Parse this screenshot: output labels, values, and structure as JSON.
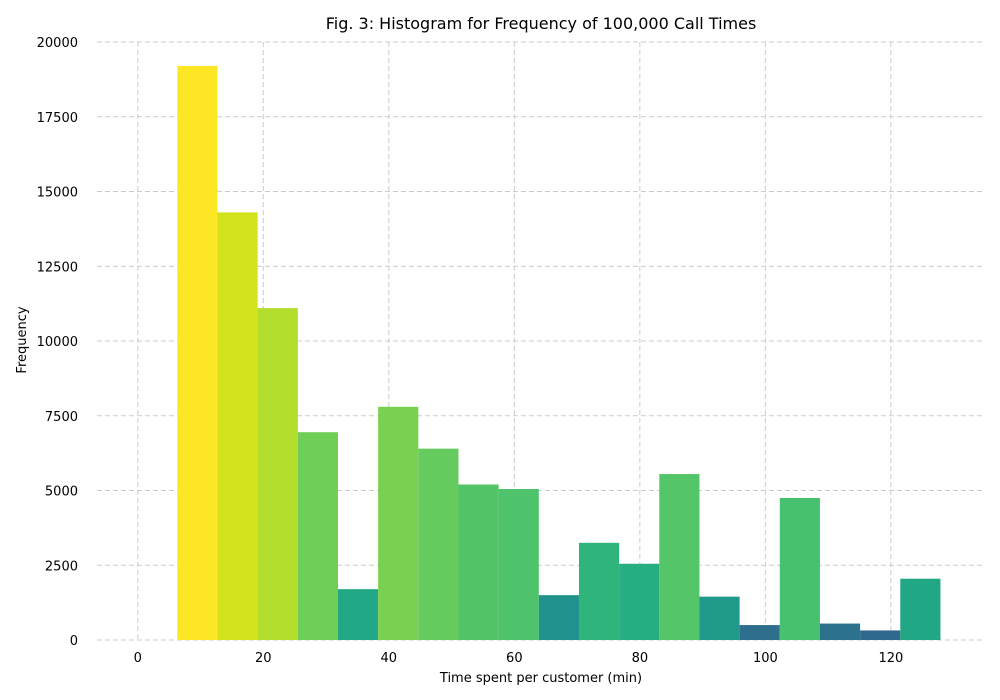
{
  "chart_data": {
    "type": "bar",
    "title": "Fig. 3: Histogram for Frequency of 100,000 Call Times",
    "xlabel": "Time spent per customer (min)",
    "ylabel": "Frequency",
    "xlim": [
      -6.5,
      135
    ],
    "ylim": [
      0,
      20000
    ],
    "xticks": [
      0,
      20,
      40,
      60,
      80,
      100,
      120
    ],
    "yticks": [
      0,
      2500,
      5000,
      7500,
      10000,
      12500,
      15000,
      17500,
      20000
    ],
    "grid": true,
    "bins": [
      {
        "x0": 6.3,
        "x1": 12.7,
        "value": 19200,
        "color": "#fde725"
      },
      {
        "x0": 12.7,
        "x1": 19.1,
        "value": 14300,
        "color": "#d2e21b"
      },
      {
        "x0": 19.1,
        "x1": 25.5,
        "value": 11100,
        "color": "#b2dd2d"
      },
      {
        "x0": 25.5,
        "x1": 31.9,
        "value": 6950,
        "color": "#6ece58"
      },
      {
        "x0": 31.9,
        "x1": 38.3,
        "value": 1700,
        "color": "#22a884"
      },
      {
        "x0": 38.3,
        "x1": 44.7,
        "value": 7800,
        "color": "#7ad151"
      },
      {
        "x0": 44.7,
        "x1": 51.1,
        "value": 6400,
        "color": "#65cb5e"
      },
      {
        "x0": 51.1,
        "x1": 57.5,
        "value": 5200,
        "color": "#52c569"
      },
      {
        "x0": 57.5,
        "x1": 63.9,
        "value": 5050,
        "color": "#4ec36b"
      },
      {
        "x0": 63.9,
        "x1": 70.3,
        "value": 1500,
        "color": "#21918c"
      },
      {
        "x0": 70.3,
        "x1": 76.7,
        "value": 3250,
        "color": "#2fb47c"
      },
      {
        "x0": 76.7,
        "x1": 83.1,
        "value": 2550,
        "color": "#26ad81"
      },
      {
        "x0": 83.1,
        "x1": 89.5,
        "value": 5550,
        "color": "#54c568"
      },
      {
        "x0": 89.5,
        "x1": 95.9,
        "value": 1450,
        "color": "#1f9a8a"
      },
      {
        "x0": 95.9,
        "x1": 102.3,
        "value": 500,
        "color": "#2e6f8e"
      },
      {
        "x0": 102.3,
        "x1": 108.7,
        "value": 4750,
        "color": "#48c16e"
      },
      {
        "x0": 108.7,
        "x1": 115.1,
        "value": 550,
        "color": "#2c728e"
      },
      {
        "x0": 115.1,
        "x1": 121.5,
        "value": 320,
        "color": "#31688e"
      },
      {
        "x0": 121.5,
        "x1": 127.9,
        "value": 2050,
        "color": "#22a785"
      }
    ]
  }
}
